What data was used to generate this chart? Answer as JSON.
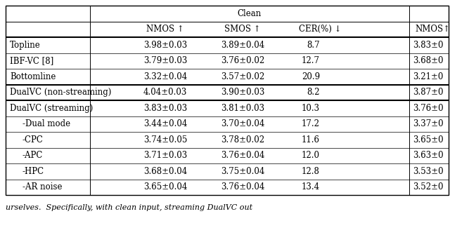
{
  "title_clean": "Clean",
  "col_headers": [
    "NMOS ↑",
    "SMOS ↑",
    "CER(%) ↓",
    "NMOS↑"
  ],
  "rows": [
    {
      "label": "Topline",
      "indent": false,
      "nmos": "3.98±0.03",
      "smos": "3.89±0.04",
      "cer": "8.7",
      "nmos2": "3.83±0"
    },
    {
      "label": "IBF-VC [8]",
      "indent": false,
      "nmos": "3.79±0.03",
      "smos": "3.76±0.02",
      "cer": "12.7",
      "nmos2": "3.68±0"
    },
    {
      "label": "Bottomline",
      "indent": false,
      "nmos": "3.32±0.04",
      "smos": "3.57±0.02",
      "cer": "20.9",
      "nmos2": "3.21±0"
    },
    {
      "label": "DualVC (non-streaming)",
      "indent": false,
      "nmos": "4.04±0.03",
      "smos": "3.90±0.03",
      "cer": "8.2",
      "nmos2": "3.87±0"
    },
    {
      "label": "DualVC (streaming)",
      "indent": false,
      "nmos": "3.83±0.03",
      "smos": "3.81±0.03",
      "cer": "10.3",
      "nmos2": "3.76±0"
    },
    {
      "label": "-Dual mode",
      "indent": true,
      "nmos": "3.44±0.04",
      "smos": "3.70±0.04",
      "cer": "17.2",
      "nmos2": "3.37±0"
    },
    {
      "label": "-CPC",
      "indent": true,
      "nmos": "3.74±0.05",
      "smos": "3.78±0.02",
      "cer": "11.6",
      "nmos2": "3.65±0"
    },
    {
      "label": "-APC",
      "indent": true,
      "nmos": "3.71±0.03",
      "smos": "3.76±0.04",
      "cer": "12.0",
      "nmos2": "3.63±0"
    },
    {
      "label": "-HPC",
      "indent": true,
      "nmos": "3.68±0.04",
      "smos": "3.75±0.04",
      "cer": "12.8",
      "nmos2": "3.53±0"
    },
    {
      "label": "-AR noise",
      "indent": true,
      "nmos": "3.65±0.04",
      "smos": "3.76±0.04",
      "cer": "13.4",
      "nmos2": "3.52±0"
    }
  ],
  "thick_line_after_rows": [
    2,
    3
  ],
  "caption": "urselves.  Specifically, with clean input, streaming DualVC out",
  "bg_color": "#ffffff",
  "text_color": "#000000",
  "font_size": 8.5,
  "header_font_size": 8.5
}
